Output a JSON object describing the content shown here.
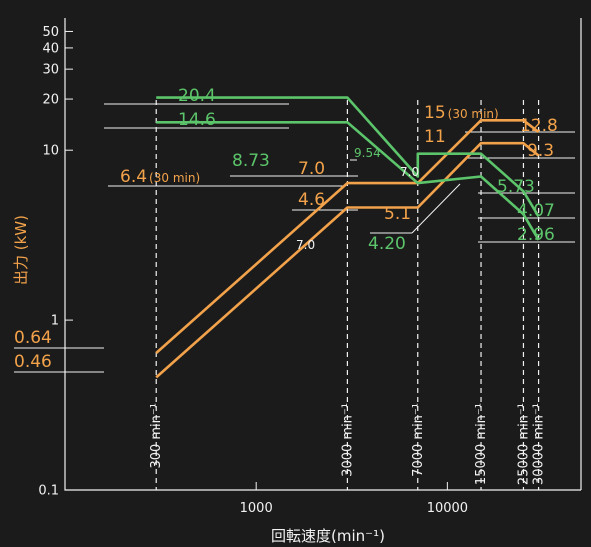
{
  "chart_data": {
    "type": "line",
    "title": "",
    "ylabel": "出力 (kW)",
    "xlabel": "回転速度(min⁻¹)",
    "y_scale": "log",
    "x_scale": "log",
    "xlim": [
      100,
      50000
    ],
    "ylim": [
      0.1,
      60
    ],
    "y_ticks": [
      0.1,
      1,
      10,
      20,
      30,
      40,
      50
    ],
    "y_tick_labels": [
      "0.1",
      "1",
      "10",
      "20",
      "30",
      "40",
      "50"
    ],
    "x_ticks": [
      1000,
      10000
    ],
    "x_tick_labels": [
      "1000",
      "10000"
    ],
    "grid": false,
    "colors": {
      "orange": "#f2a24a",
      "green": "#5cc46a",
      "white": "#f2f2f2",
      "background": "#1b1b1b"
    },
    "speed_markers": [
      {
        "x": 300,
        "label": "300 min⁻¹"
      },
      {
        "x": 3000,
        "label": "3000 min⁻¹"
      },
      {
        "x": 7000,
        "label": "7000 min⁻¹"
      },
      {
        "x": 15000,
        "label": "15000 min⁻¹"
      },
      {
        "x": 25000,
        "label": "25000 min⁻¹"
      },
      {
        "x": 30000,
        "label": "30000 min⁻¹"
      }
    ],
    "series": [
      {
        "color": "orange",
        "points": [
          [
            300,
            0.64
          ],
          [
            3000,
            6.4
          ],
          [
            7000,
            6.4
          ],
          [
            15000,
            15
          ],
          [
            25000,
            15
          ],
          [
            30000,
            12.8
          ]
        ]
      },
      {
        "color": "orange",
        "points": [
          [
            300,
            0.46
          ],
          [
            3000,
            4.6
          ],
          [
            7000,
            4.6
          ],
          [
            15000,
            11
          ],
          [
            25000,
            11
          ],
          [
            30000,
            9.3
          ]
        ]
      },
      {
        "color": "green",
        "points": [
          [
            300,
            20.4
          ],
          [
            3000,
            20.4
          ],
          [
            7000,
            7.0
          ],
          [
            7000,
            9.54
          ],
          [
            15000,
            9.54
          ],
          [
            25000,
            5.73
          ],
          [
            30000,
            4.07
          ]
        ]
      },
      {
        "color": "green",
        "points": [
          [
            300,
            14.6
          ],
          [
            3000,
            14.6
          ],
          [
            7000,
            6.4
          ],
          [
            15000,
            7.0
          ],
          [
            25000,
            4.2
          ],
          [
            30000,
            2.96
          ]
        ]
      }
    ],
    "annotations": [
      {
        "text": "0.64",
        "color": "orange"
      },
      {
        "text": "0.46",
        "color": "orange"
      },
      {
        "text": "20.4",
        "color": "green"
      },
      {
        "text": "14.6",
        "color": "green"
      },
      {
        "text": "6.4",
        "suffix": "(30 min)",
        "color": "orange"
      },
      {
        "text": "8.73",
        "color": "green"
      },
      {
        "text": "7.0",
        "color": "orange"
      },
      {
        "text": "4.6",
        "color": "orange"
      },
      {
        "text": "7.0",
        "color": "white"
      },
      {
        "text": "9.54",
        "color": "green"
      },
      {
        "text": "7.0",
        "color": "white"
      },
      {
        "text": "5.1",
        "color": "orange"
      },
      {
        "text": "4.20",
        "color": "green"
      },
      {
        "text": "15",
        "suffix": "(30 min)",
        "color": "orange"
      },
      {
        "text": "11",
        "color": "orange"
      },
      {
        "text": "12.8",
        "color": "orange"
      },
      {
        "text": "9.3",
        "color": "orange"
      },
      {
        "text": "5.73",
        "color": "green"
      },
      {
        "text": "4.07",
        "color": "green"
      },
      {
        "text": "2.96",
        "color": "green"
      }
    ]
  }
}
